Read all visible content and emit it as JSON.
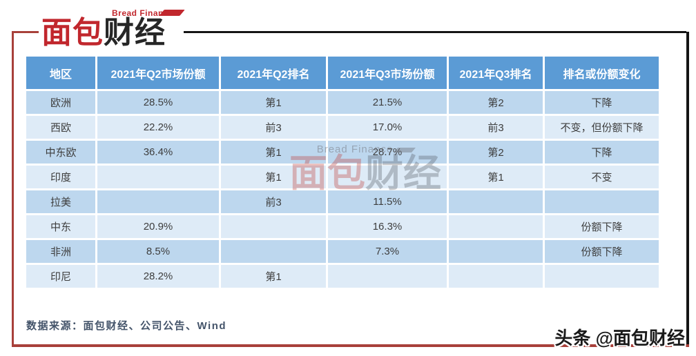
{
  "logo": {
    "subtitle": "Bread Finance",
    "title_red": "面包",
    "title_dark": "财经"
  },
  "watermark": {
    "subtitle": "Bread Finance",
    "title_red": "面包",
    "title_gray": "财经"
  },
  "table": {
    "headers": [
      "地区",
      "2021年Q2市场份额",
      "2021年Q2排名",
      "2021年Q3市场份额",
      "2021年Q3排名",
      "排名或份额变化"
    ],
    "rows": [
      [
        "欧洲",
        "28.5%",
        "第1",
        "21.5%",
        "第2",
        "下降"
      ],
      [
        "西欧",
        "22.2%",
        "前3",
        "17.0%",
        "前3",
        "不变，但份额下降"
      ],
      [
        "中东欧",
        "36.4%",
        "第1",
        "28.7%",
        "第2",
        "下降"
      ],
      [
        "印度",
        "",
        "第1",
        "",
        "第1",
        "不变"
      ],
      [
        "拉美",
        "",
        "前3",
        "11.5%",
        "",
        ""
      ],
      [
        "中东",
        "20.9%",
        "",
        "16.3%",
        "",
        "份额下降"
      ],
      [
        "非洲",
        "8.5%",
        "",
        "7.3%",
        "",
        "份额下降"
      ],
      [
        "印尼",
        "28.2%",
        "第1",
        "",
        "",
        ""
      ]
    ]
  },
  "source_note": "数据来源：面包财经、公司公告、Wind",
  "footer_badge": "头条 @面包财经",
  "colors": {
    "header_blue": "#5b9bd5",
    "row_band_dark": "#bdd7ee",
    "row_band_light": "#deebf7",
    "frame_red": "#a8403a",
    "frame_black": "#141414",
    "logo_red": "#c1272d",
    "source_text": "#44546a"
  }
}
